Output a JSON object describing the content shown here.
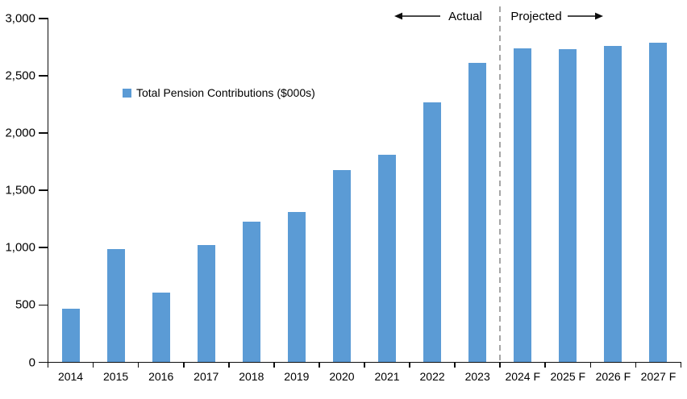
{
  "chart_data": {
    "type": "bar",
    "title": "",
    "legend": "Total Pension Contributions ($000s)",
    "categories": [
      "2014",
      "2015",
      "2016",
      "2017",
      "2018",
      "2019",
      "2020",
      "2021",
      "2022",
      "2023",
      "2024 F",
      "2025 F",
      "2026 F",
      "2027 F"
    ],
    "values": [
      470,
      990,
      610,
      1020,
      1230,
      1310,
      1680,
      1810,
      2270,
      2610,
      2740,
      2730,
      2760,
      2790
    ],
    "xlabel": "",
    "ylabel": "",
    "ylim": [
      0,
      3000
    ],
    "ytick_interval": 500,
    "ytick_labels": [
      "0",
      "500",
      "1,000",
      "1,500",
      "2,000",
      "2,500",
      "3,000"
    ],
    "grid": false,
    "legend_position": "inside-upper-left",
    "bar_color": "#5B9BD5",
    "axis_color": "#0d0d0d",
    "divider": {
      "after_category": "2023",
      "color": "#A6A6A6",
      "style": "dashed"
    },
    "annotations": {
      "left_label": "Actual",
      "right_label": "Projected"
    }
  }
}
